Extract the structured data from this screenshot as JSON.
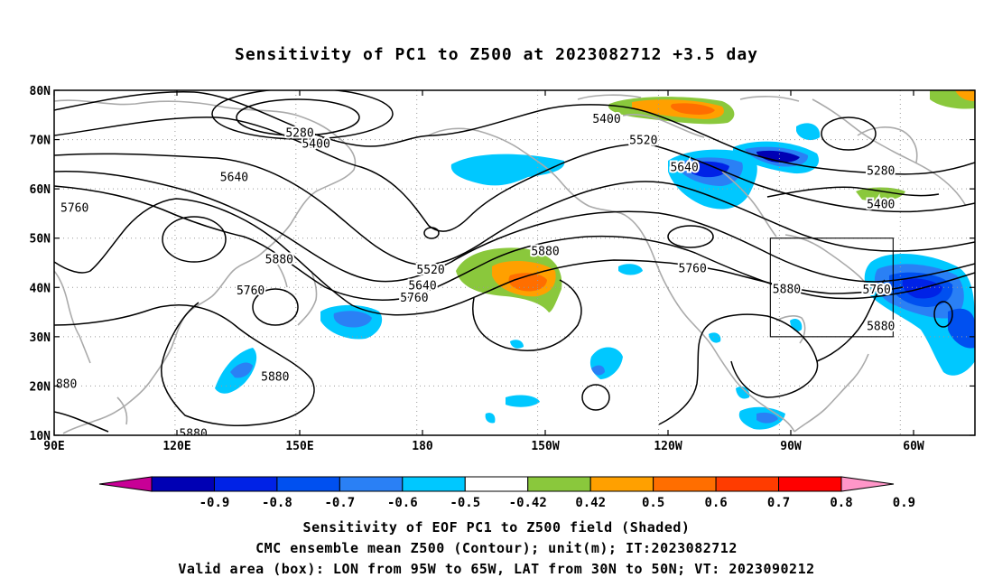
{
  "title": "Sensitivity of PC1 to Z500 at 2023082712 +3.5 day",
  "map": {
    "lat_labels": [
      "80N",
      "70N",
      "60N",
      "50N",
      "40N",
      "30N",
      "20N",
      "10N"
    ],
    "lon_labels": [
      "90E",
      "120E",
      "150E",
      "180",
      "150W",
      "120W",
      "90W",
      "60W"
    ],
    "contour_labels": [
      {
        "text": "5280",
        "lon": 150,
        "lat": 71.5
      },
      {
        "text": "5400",
        "lon": 154,
        "lat": 69.3
      },
      {
        "text": "5640",
        "lon": 134,
        "lat": 62.5
      },
      {
        "text": "5760",
        "lon": 95,
        "lat": 56.3
      },
      {
        "text": "5880",
        "lon": 145,
        "lat": 45.8
      },
      {
        "text": "5760",
        "lon": 138,
        "lat": 39.5
      },
      {
        "text": "5520",
        "lon": -178,
        "lat": 43.7
      },
      {
        "text": "5640",
        "lon": -180,
        "lat": 40.5
      },
      {
        "text": "5760",
        "lon": -182,
        "lat": 38.0
      },
      {
        "text": "5880",
        "lon": -150,
        "lat": 47.5
      },
      {
        "text": "5400",
        "lon": -135,
        "lat": 74.3
      },
      {
        "text": "5520",
        "lon": -126,
        "lat": 70.0
      },
      {
        "text": "5640",
        "lon": -116,
        "lat": 64.5
      },
      {
        "text": "5760",
        "lon": -114,
        "lat": 44.0
      },
      {
        "text": "5880",
        "lon": -91,
        "lat": 39.8
      },
      {
        "text": "5760",
        "lon": -69,
        "lat": 39.7
      },
      {
        "text": "5880",
        "lon": -68,
        "lat": 32.3
      },
      {
        "text": "5280",
        "lon": -68,
        "lat": 63.8
      },
      {
        "text": "5400",
        "lon": -68,
        "lat": 57.0
      },
      {
        "text": "5880",
        "lon": 144,
        "lat": 22.0
      },
      {
        "text": "5880",
        "lon": 124,
        "lat": 10.5
      },
      {
        "text": "880",
        "lon": 93,
        "lat": 20.5
      }
    ],
    "valid_box": {
      "lon_min": -95,
      "lon_max": -65,
      "lat_min": 30,
      "lat_max": 50
    }
  },
  "colorbar": {
    "levels": [
      "-0.9",
      "-0.8",
      "-0.7",
      "-0.6",
      "-0.5",
      "-0.42",
      "0.42",
      "0.5",
      "0.6",
      "0.7",
      "0.8",
      "0.9"
    ],
    "colors": [
      "#c80096",
      "#0000b4",
      "#0022e6",
      "#0050f0",
      "#2a80f5",
      "#00c8ff",
      "#ffffff",
      "#8ac83c",
      "#ffa000",
      "#ff6e00",
      "#ff3c00",
      "#ff0000",
      "#ff96c8"
    ]
  },
  "captions": {
    "line1": "Sensitivity of EOF PC1 to Z500 field (Shaded)",
    "line2": "CMC ensemble mean Z500 (Contour); unit(m); IT:2023082712",
    "line3": "Valid area (box): LON from 95W to 65W, LAT from 30N to 50N; VT: 2023090212"
  }
}
